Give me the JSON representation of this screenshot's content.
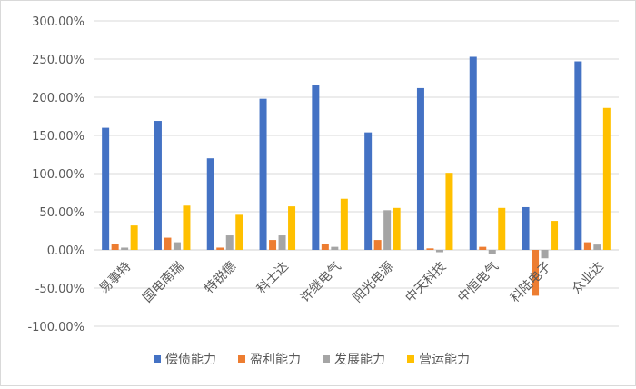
{
  "chart_data": {
    "type": "bar",
    "title": "",
    "xlabel": "",
    "ylabel": "",
    "ylim": [
      -100,
      300
    ],
    "y_ticks": [
      "300.00%",
      "250.00%",
      "200.00%",
      "150.00%",
      "100.00%",
      "50.00%",
      "0.00%",
      "-50.00%",
      "-100.00%"
    ],
    "grid": true,
    "legend_position": "bottom",
    "categories": [
      "易事特",
      "国电南瑞",
      "特锐德",
      "科士达",
      "许继电气",
      "阳光电源",
      "中天科技",
      "中恒电气",
      "科陆电子",
      "众业达"
    ],
    "series": [
      {
        "name": "偿债能力",
        "color": "#4472C4",
        "values": [
          160,
          169,
          120,
          198,
          216,
          154,
          212,
          253,
          56,
          247
        ]
      },
      {
        "name": "盈利能力",
        "color": "#ED7D31",
        "values": [
          8,
          16,
          3,
          13,
          8,
          13,
          2,
          4,
          -60,
          10
        ]
      },
      {
        "name": "发展能力",
        "color": "#A5A5A5",
        "values": [
          3,
          10,
          19,
          19,
          4,
          52,
          -3,
          -5,
          -11,
          7
        ]
      },
      {
        "name": "营运能力",
        "color": "#FFC000",
        "values": [
          32,
          58,
          46,
          57,
          67,
          55,
          101,
          55,
          38,
          186
        ]
      }
    ]
  }
}
